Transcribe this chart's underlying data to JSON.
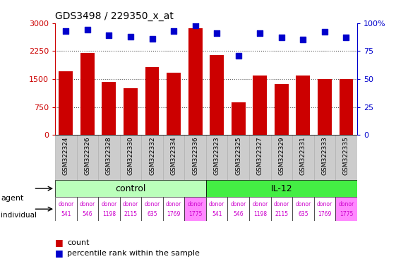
{
  "title": "GDS3498 / 229350_x_at",
  "samples": [
    "GSM322324",
    "GSM322326",
    "GSM322328",
    "GSM322330",
    "GSM322332",
    "GSM322334",
    "GSM322336",
    "GSM322323",
    "GSM322325",
    "GSM322327",
    "GSM322329",
    "GSM322331",
    "GSM322333",
    "GSM322335"
  ],
  "counts": [
    1700,
    2200,
    1430,
    1260,
    1820,
    1670,
    2860,
    2140,
    880,
    1600,
    1370,
    1600,
    1500,
    1500
  ],
  "percentiles": [
    93,
    94,
    89,
    88,
    86,
    93,
    98,
    91,
    71,
    91,
    87,
    85,
    92,
    87
  ],
  "ylim_left": [
    0,
    3000
  ],
  "ylim_right": [
    0,
    100
  ],
  "yticks_left": [
    0,
    750,
    1500,
    2250,
    3000
  ],
  "yticks_right": [
    0,
    25,
    50,
    75,
    100
  ],
  "ytick_labels_left": [
    "0",
    "750",
    "1500",
    "2250",
    "3000"
  ],
  "ytick_labels_right": [
    "0",
    "25",
    "50",
    "75",
    "100%"
  ],
  "bar_color": "#cc0000",
  "dot_color": "#0000cc",
  "agent_control_label": "control",
  "agent_il12_label": "IL-12",
  "agent_control_color": "#bbffbb",
  "agent_il12_color": "#44ee44",
  "individual_labels": [
    "donor\n541",
    "donor\n546",
    "donor\n1198",
    "donor\n2115",
    "donor\n635",
    "donor\n1769",
    "donor\n1775",
    "donor\n541",
    "donor\n546",
    "donor\n1198",
    "donor\n2115",
    "donor\n635",
    "donor\n1769",
    "donor\n1775"
  ],
  "individual_colors": [
    "#ffffff",
    "#ffffff",
    "#ffffff",
    "#ffffff",
    "#ffffff",
    "#ffffff",
    "#ff88ff",
    "#ffffff",
    "#ffffff",
    "#ffffff",
    "#ffffff",
    "#ffffff",
    "#ffffff",
    "#ff88ff"
  ],
  "grid_color": "#555555",
  "bg_color": "#ffffff",
  "sample_bg": "#cccccc",
  "text_color_indiv": "#cc00cc"
}
